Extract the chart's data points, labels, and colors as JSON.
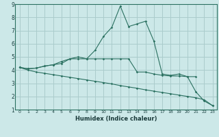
{
  "xlabel": "Humidex (Indice chaleur)",
  "background_color": "#cce8e8",
  "grid_color": "#aacccc",
  "line_color": "#2a7060",
  "xlim": [
    -0.5,
    23.5
  ],
  "ylim": [
    1,
    9
  ],
  "xticks": [
    0,
    1,
    2,
    3,
    4,
    5,
    6,
    7,
    8,
    9,
    10,
    11,
    12,
    13,
    14,
    15,
    16,
    17,
    18,
    19,
    20,
    21,
    22,
    23
  ],
  "yticks": [
    1,
    2,
    3,
    4,
    5,
    6,
    7,
    8,
    9
  ],
  "series1_x": [
    0,
    1,
    2,
    3,
    4,
    5,
    6,
    7,
    8,
    9,
    10,
    11,
    12,
    13,
    14,
    15,
    16,
    17,
    18,
    19,
    20,
    21,
    22,
    23
  ],
  "series1_y": [
    4.2,
    4.1,
    4.15,
    4.3,
    4.4,
    4.65,
    4.85,
    5.0,
    4.85,
    5.5,
    6.55,
    7.25,
    8.85,
    7.3,
    7.5,
    7.7,
    6.2,
    3.7,
    3.6,
    3.7,
    3.5,
    2.35,
    1.65,
    1.3
  ],
  "series2_x": [
    0,
    1,
    2,
    3,
    4,
    5,
    6,
    7,
    8,
    9,
    10,
    11,
    12,
    13,
    14,
    15,
    16,
    17,
    18,
    19,
    20,
    21
  ],
  "series2_y": [
    4.2,
    4.1,
    4.15,
    4.3,
    4.4,
    4.5,
    4.85,
    4.85,
    4.85,
    4.85,
    4.85,
    4.85,
    4.85,
    4.85,
    3.85,
    3.85,
    3.7,
    3.6,
    3.55,
    3.55,
    3.5,
    3.5
  ],
  "series3_x": [
    0,
    1,
    2,
    3,
    4,
    5,
    6,
    7,
    8,
    9,
    10,
    11,
    12,
    13,
    14,
    15,
    16,
    17,
    18,
    19,
    20,
    21,
    22,
    23
  ],
  "series3_y": [
    4.2,
    4.0,
    3.85,
    3.75,
    3.65,
    3.55,
    3.45,
    3.35,
    3.25,
    3.15,
    3.05,
    2.95,
    2.82,
    2.72,
    2.62,
    2.5,
    2.4,
    2.3,
    2.2,
    2.1,
    2.0,
    1.9,
    1.75,
    1.3
  ]
}
